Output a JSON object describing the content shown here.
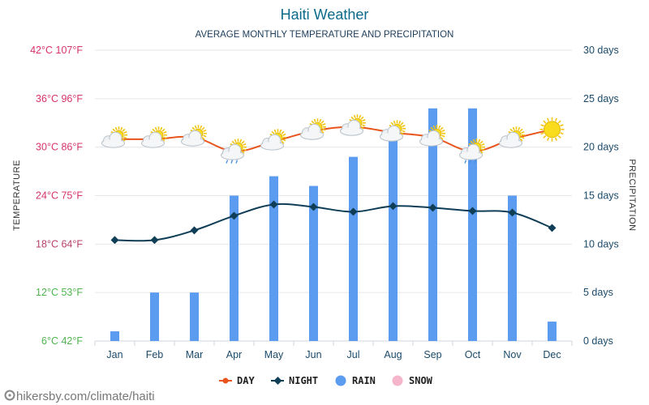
{
  "header": {
    "title": "Haiti Weather",
    "subtitle": "AVERAGE MONTHLY TEMPERATURE AND PRECIPITATION"
  },
  "source": {
    "text": "hikersby.com/climate/haiti"
  },
  "chart_data": {
    "type": "line",
    "categories": [
      "Jan",
      "Feb",
      "Mar",
      "Apr",
      "May",
      "Jun",
      "Jul",
      "Aug",
      "Sep",
      "Oct",
      "Nov",
      "Dec"
    ],
    "y_left": {
      "label": "TEMPERATURE",
      "range_c": [
        6,
        42
      ],
      "ticks": [
        {
          "c": 42,
          "label": "42°C 107°F"
        },
        {
          "c": 36,
          "label": "36°C 96°F"
        },
        {
          "c": 30,
          "label": "30°C 86°F"
        },
        {
          "c": 24,
          "label": "24°C 75°F"
        },
        {
          "c": 18,
          "label": "18°C 64°F"
        },
        {
          "c": 12,
          "label": "12°C 53°F"
        },
        {
          "c": 6,
          "label": "6°C 42°F"
        }
      ]
    },
    "y_right": {
      "label": "PRECIPITATION",
      "range_days": [
        0,
        30
      ],
      "ticks": [
        {
          "days": 30,
          "label": "30 days"
        },
        {
          "days": 25,
          "label": "25 days"
        },
        {
          "days": 20,
          "label": "20 days"
        },
        {
          "days": 15,
          "label": "15 days"
        },
        {
          "days": 10,
          "label": "10 days"
        },
        {
          "days": 5,
          "label": "5 days"
        },
        {
          "days": 0,
          "label": "0 days"
        }
      ]
    },
    "series": [
      {
        "name": "DAY",
        "axis": "left",
        "color": "#e8541b",
        "values": [
          31,
          31,
          31.2,
          29.5,
          30.7,
          32,
          32.5,
          31.8,
          31.2,
          29.5,
          31,
          32.2
        ]
      },
      {
        "name": "NIGHT",
        "axis": "left",
        "color": "#0f3e56",
        "values": [
          18.5,
          18.5,
          19.7,
          21.5,
          22.9,
          22.6,
          22,
          22.7,
          22.5,
          22.1,
          21.9,
          20
        ]
      },
      {
        "name": "RAIN",
        "axis": "right",
        "type": "bar",
        "color": "#5b9cf0",
        "values": [
          1,
          5,
          5,
          15,
          17,
          16,
          19,
          21,
          24,
          24,
          15,
          2
        ]
      },
      {
        "name": "SNOW",
        "axis": "right",
        "type": "bar",
        "color": "#f5b5ca",
        "values": [
          0,
          0,
          0,
          0,
          0,
          0,
          0,
          0,
          0,
          0,
          0,
          0
        ]
      }
    ],
    "day_icons": [
      "partly-cloudy-icon",
      "partly-cloudy-icon",
      "partly-cloudy-icon",
      "rain-shower-icon",
      "partly-cloudy-icon",
      "partly-cloudy-icon",
      "partly-cloudy-icon",
      "partly-cloudy-icon",
      "partly-cloudy-icon",
      "rain-shower-icon",
      "partly-cloudy-icon",
      "sun-icon"
    ],
    "legend": [
      "DAY",
      "NIGHT",
      "RAIN",
      "SNOW"
    ],
    "grid": true,
    "legend_position": "bottom-center"
  },
  "colors": {
    "temp_hot": "#d6336c",
    "temp_warm": "#b8406a",
    "temp_mild": "#7ab342",
    "temp_cool": "#4fb34f",
    "grid": "#e6e6e6"
  }
}
